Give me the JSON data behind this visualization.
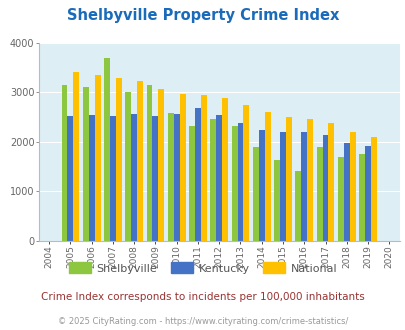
{
  "title": "Shelbyville Property Crime Index",
  "years": [
    2004,
    2005,
    2006,
    2007,
    2008,
    2009,
    2010,
    2011,
    2012,
    2013,
    2014,
    2015,
    2016,
    2017,
    2018,
    2019,
    2020
  ],
  "shelbyville": [
    null,
    3150,
    3100,
    3700,
    3000,
    3150,
    2580,
    2330,
    2470,
    2320,
    1890,
    1640,
    1420,
    1890,
    1690,
    1760,
    null
  ],
  "kentucky": [
    null,
    2530,
    2540,
    2530,
    2560,
    2530,
    2560,
    2680,
    2550,
    2380,
    2240,
    2190,
    2200,
    2130,
    1980,
    1910,
    null
  ],
  "national": [
    null,
    3420,
    3360,
    3290,
    3230,
    3060,
    2960,
    2940,
    2890,
    2740,
    2610,
    2500,
    2460,
    2390,
    2210,
    2100,
    null
  ],
  "shelbyville_color": "#8dc63f",
  "kentucky_color": "#4472c4",
  "national_color": "#ffc000",
  "bg_color": "#ddeef5",
  "ylim": [
    0,
    4000
  ],
  "yticks": [
    0,
    1000,
    2000,
    3000,
    4000
  ],
  "subtitle": "Crime Index corresponds to incidents per 100,000 inhabitants",
  "footer": "© 2025 CityRating.com - https://www.cityrating.com/crime-statistics/",
  "title_color": "#1a6bba",
  "subtitle_color": "#993333",
  "footer_color": "#999999",
  "legend_label_color": "#555555"
}
